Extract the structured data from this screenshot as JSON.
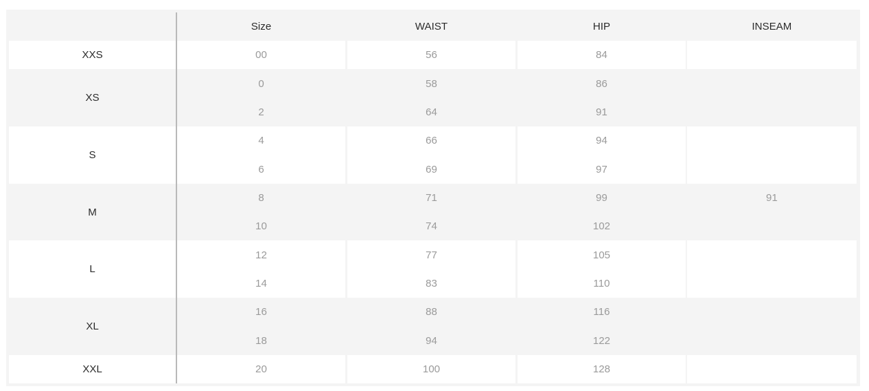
{
  "columns": [
    "",
    "Size",
    "WAIST",
    "HIP",
    "INSEAM"
  ],
  "groups": [
    {
      "label": "XXS",
      "shade": "white",
      "rows": [
        {
          "size": "00",
          "waist": "56",
          "hip": "84",
          "inseam": ""
        }
      ]
    },
    {
      "label": "XS",
      "shade": "grey",
      "rows": [
        {
          "size": "0",
          "waist": "58",
          "hip": "86",
          "inseam": ""
        },
        {
          "size": "2",
          "waist": "64",
          "hip": "91",
          "inseam": ""
        }
      ]
    },
    {
      "label": "S",
      "shade": "white",
      "rows": [
        {
          "size": "4",
          "waist": "66",
          "hip": "94",
          "inseam": ""
        },
        {
          "size": "6",
          "waist": "69",
          "hip": "97",
          "inseam": ""
        }
      ]
    },
    {
      "label": "M",
      "shade": "grey",
      "rows": [
        {
          "size": "8",
          "waist": "71",
          "hip": "99",
          "inseam": "91"
        },
        {
          "size": "10",
          "waist": "74",
          "hip": "102",
          "inseam": ""
        }
      ]
    },
    {
      "label": "L",
      "shade": "white",
      "rows": [
        {
          "size": "12",
          "waist": "77",
          "hip": "105",
          "inseam": ""
        },
        {
          "size": "14",
          "waist": "83",
          "hip": "110",
          "inseam": ""
        }
      ]
    },
    {
      "label": "XL",
      "shade": "grey",
      "rows": [
        {
          "size": "16",
          "waist": "88",
          "hip": "116",
          "inseam": ""
        },
        {
          "size": "18",
          "waist": "94",
          "hip": "122",
          "inseam": ""
        }
      ]
    },
    {
      "label": "XXL",
      "shade": "white",
      "rows": [
        {
          "size": "20",
          "waist": "100",
          "hip": "128",
          "inseam": ""
        }
      ]
    }
  ],
  "colors": {
    "outer": "#f4f4f4",
    "grey_row": "#f4f4f4",
    "white_row": "#ffffff",
    "divider": "#b9b9b9",
    "label_text": "#2b2b2b",
    "value_text": "#9a9a9a"
  }
}
